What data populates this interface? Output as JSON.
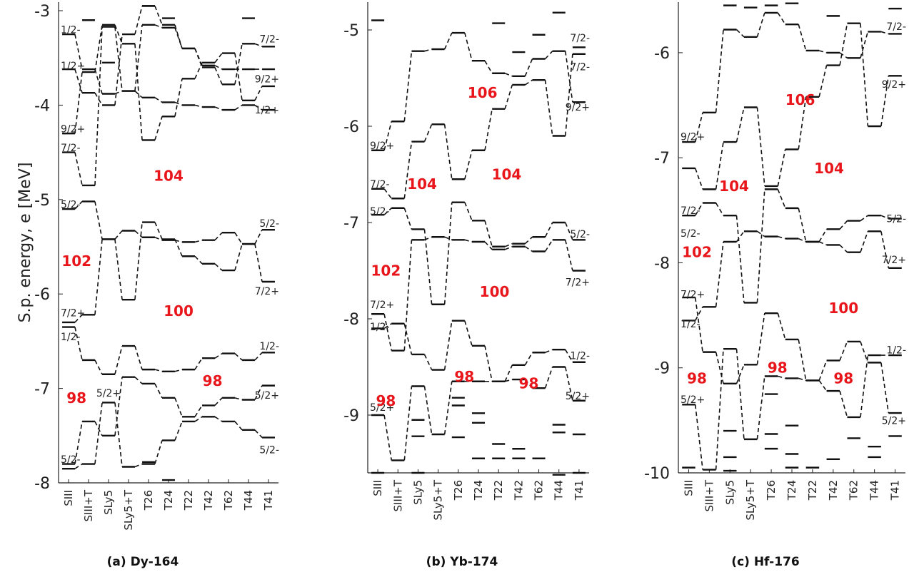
{
  "ylabel": "S.p. energy, e [MeV]",
  "categories": [
    "SIII",
    "SIII+T",
    "SLy5",
    "SLy5+T",
    "T26",
    "T24",
    "T22",
    "T42",
    "T62",
    "T44",
    "T41"
  ],
  "chart_data": [
    {
      "type": "level-scheme",
      "caption": "(a) Dy-164",
      "ylim": [
        -8,
        -3
      ],
      "yticks": [
        -3,
        -4,
        -5,
        -6,
        -7,
        -8
      ],
      "ytick_labels": [
        "-3",
        "-4",
        "-5",
        "-6",
        "-7",
        "-8"
      ],
      "series": [
        [
          -3.25,
          -3.62,
          -3.88,
          -3.85,
          -3.92,
          -3.97,
          -4.0,
          -4.02,
          -4.05,
          -4.0,
          -4.05
        ],
        [
          -3.62,
          -3.87,
          -4.0,
          -3.25,
          -2.95,
          -3.15,
          -3.4,
          -3.6,
          -3.78,
          -3.35,
          -3.38
        ],
        [
          -4.3,
          -3.65,
          -3.15,
          -3.35,
          -4.37,
          -4.12,
          -3.72,
          -3.55,
          -3.45,
          -3.95,
          -3.8
        ],
        [
          -4.5,
          -4.85,
          -3.17,
          -3.85,
          -3.15,
          -3.18,
          -3.4,
          -3.58,
          -3.62,
          -3.62,
          -3.62
        ],
        [
          -5.1,
          -5.02,
          -5.42,
          -6.06,
          -5.24,
          -5.42,
          -5.6,
          -5.68,
          -5.75,
          -5.47,
          -5.32
        ],
        [
          -6.3,
          -6.22,
          -5.42,
          -5.33,
          -5.4,
          -5.43,
          -5.45,
          -5.43,
          -5.35,
          -5.47,
          -5.87
        ],
        [
          -6.35,
          -6.7,
          -6.85,
          -6.55,
          -6.8,
          -6.82,
          -6.8,
          -6.68,
          -6.63,
          -6.7,
          -6.62
        ],
        [
          -7.8,
          -7.35,
          -7.5,
          -6.88,
          -6.95,
          -7.1,
          -7.3,
          -7.18,
          -7.1,
          -7.12,
          -6.97
        ],
        [
          -7.85,
          -7.8,
          -7.15,
          -7.83,
          -7.8,
          -7.55,
          -7.35,
          -7.3,
          -7.35,
          -7.44,
          -7.52
        ]
      ],
      "extra_levels": [
        [
          1,
          -3.1
        ],
        [
          5,
          -3.08
        ],
        [
          9,
          -3.08
        ],
        [
          4,
          -2.95
        ],
        [
          2,
          -3.55
        ],
        [
          4,
          -7.78
        ],
        [
          5,
          -7.97
        ]
      ],
      "left_labels": [
        {
          "text": "1/2-",
          "y": -3.2
        },
        {
          "text": "1/2+",
          "y": -3.58
        },
        {
          "text": "9/2+",
          "y": -4.25
        },
        {
          "text": "7/2-",
          "y": -4.45
        },
        {
          "text": "5/2-",
          "y": -5.05
        },
        {
          "text": "7/2+",
          "y": -6.2
        },
        {
          "text": "1/2-",
          "y": -6.45
        },
        {
          "text": "5/2-",
          "y": -7.75
        }
      ],
      "right_labels": [
        {
          "text": "7/2-",
          "y": -3.3
        },
        {
          "text": "9/2+",
          "y": -3.72
        },
        {
          "text": "1/2+",
          "y": -4.05
        },
        {
          "text": "5/2-",
          "y": -5.25
        },
        {
          "text": "7/2+",
          "y": -5.97
        },
        {
          "text": "1/2-",
          "y": -6.55
        },
        {
          "text": "5/2+",
          "y": -7.07
        },
        {
          "text": "5/2-",
          "y": -7.65
        }
      ],
      "inner_labels": [
        {
          "text": "5/2+",
          "cat": 2,
          "y": -7.05
        }
      ],
      "gap_labels": [
        {
          "text": "104",
          "cat": 5,
          "y": -4.75
        },
        {
          "text": "102",
          "cat": 0.4,
          "y": -5.65
        },
        {
          "text": "100",
          "cat": 5.5,
          "y": -6.18
        },
        {
          "text": "98",
          "cat": 0.4,
          "y": -7.1
        },
        {
          "text": "98",
          "cat": 7.2,
          "y": -6.92
        }
      ]
    },
    {
      "type": "level-scheme",
      "caption": "(b) Yb-174",
      "ylim": [
        -9.6,
        -4.8
      ],
      "yticks": [
        -5,
        -6,
        -7,
        -8,
        -9
      ],
      "ytick_labels": [
        "-5",
        "-6",
        "-7",
        "-8",
        "-9"
      ],
      "series": [
        [
          -6.25,
          -5.95,
          -5.22,
          -5.2,
          -5.03,
          -5.32,
          -5.45,
          -5.48,
          -5.3,
          -5.22,
          -5.75
        ],
        [
          -6.65,
          -6.75,
          -6.16,
          -5.98,
          -6.55,
          -6.25,
          -5.82,
          -5.57,
          -5.52,
          -6.1,
          -5.25
        ],
        [
          -6.92,
          -6.85,
          -7.07,
          -7.85,
          -6.79,
          -6.98,
          -7.25,
          -7.22,
          -7.15,
          -7.0,
          -7.18
        ],
        [
          -7.95,
          -8.33,
          -7.18,
          -7.15,
          -7.18,
          -7.2,
          -7.28,
          -7.25,
          -7.3,
          -7.18,
          -7.5
        ],
        [
          -8.1,
          -8.05,
          -8.37,
          -8.53,
          -8.02,
          -8.28,
          -8.65,
          -8.48,
          -8.35,
          -8.32,
          -8.45
        ],
        [
          -9.0,
          -9.47,
          -8.7,
          -9.2,
          -8.65,
          -8.65,
          -8.65,
          -8.63,
          -8.72,
          -8.5,
          -8.85
        ]
      ],
      "extra_levels": [
        [
          0,
          -4.9
        ],
        [
          9,
          -4.82
        ],
        [
          6,
          -4.93
        ],
        [
          7,
          -5.23
        ],
        [
          8,
          -5.05
        ],
        [
          10,
          -5.18
        ],
        [
          0,
          -9.6
        ],
        [
          2,
          -9.6
        ],
        [
          2,
          -9.05
        ],
        [
          2,
          -9.22
        ],
        [
          4,
          -8.82
        ],
        [
          4,
          -8.9
        ],
        [
          4,
          -9.23
        ],
        [
          5,
          -8.98
        ],
        [
          5,
          -9.08
        ],
        [
          5,
          -9.45
        ],
        [
          6,
          -9.3
        ],
        [
          6,
          -9.45
        ],
        [
          7,
          -9.35
        ],
        [
          7,
          -9.45
        ],
        [
          8,
          -9.45
        ],
        [
          9,
          -9.1
        ],
        [
          9,
          -9.18
        ],
        [
          9,
          -9.62
        ],
        [
          10,
          -9.2
        ],
        [
          10,
          -9.6
        ]
      ],
      "left_labels": [
        {
          "text": "9/2+",
          "y": -6.2
        },
        {
          "text": "7/2-",
          "y": -6.6
        },
        {
          "text": "5/2-",
          "y": -6.88
        },
        {
          "text": "7/2+",
          "y": -7.85
        },
        {
          "text": "1/2-",
          "y": -8.08
        },
        {
          "text": "5/2+",
          "y": -8.92
        }
      ],
      "right_labels": [
        {
          "text": "7/2-",
          "y": -5.08
        },
        {
          "text": "7/2-",
          "y": -5.38
        },
        {
          "text": "9/2+",
          "y": -5.8
        },
        {
          "text": "5/2-",
          "y": -7.12
        },
        {
          "text": "7/2+",
          "y": -7.62
        },
        {
          "text": "1/2-",
          "y": -8.38
        },
        {
          "text": "5/2+",
          "y": -8.8
        }
      ],
      "inner_labels": [],
      "gap_labels": [
        {
          "text": "106",
          "cat": 5.2,
          "y": -5.65
        },
        {
          "text": "104",
          "cat": 2.2,
          "y": -6.6
        },
        {
          "text": "104",
          "cat": 6.4,
          "y": -6.5
        },
        {
          "text": "102",
          "cat": 0.4,
          "y": -7.5
        },
        {
          "text": "100",
          "cat": 5.8,
          "y": -7.72
        },
        {
          "text": "98",
          "cat": 0.4,
          "y": -8.85
        },
        {
          "text": "98",
          "cat": 4.3,
          "y": -8.6
        },
        {
          "text": "98",
          "cat": 7.5,
          "y": -8.67
        }
      ]
    },
    {
      "type": "level-scheme",
      "caption": "(c) Hf-176",
      "ylim": [
        -10,
        -5.6
      ],
      "yticks": [
        -6,
        -7,
        -8,
        -9,
        -10
      ],
      "ytick_labels": [
        "-6",
        "-7",
        "-8",
        "-9",
        "-10"
      ],
      "series": [
        [
          -6.85,
          -6.57,
          -5.78,
          -5.85,
          -5.62,
          -5.73,
          -5.98,
          -6.0,
          -6.05,
          -5.8,
          -5.82
        ],
        [
          -7.1,
          -7.3,
          -6.85,
          -6.52,
          -7.27,
          -6.92,
          -6.42,
          -6.12,
          -5.72,
          -6.7,
          -6.22
        ],
        [
          -7.55,
          -7.43,
          -7.55,
          -8.38,
          -7.3,
          -7.48,
          -7.8,
          -7.68,
          -7.6,
          -7.55,
          -7.58
        ],
        [
          -8.55,
          -8.42,
          -7.8,
          -7.7,
          -7.75,
          -7.77,
          -7.8,
          -7.83,
          -7.9,
          -7.7,
          -8.05
        ],
        [
          -8.33,
          -8.85,
          -9.15,
          -8.97,
          -8.48,
          -8.73,
          -9.12,
          -9.22,
          -9.47,
          -8.88,
          -8.88
        ],
        [
          -9.35,
          -9.97,
          -8.82,
          -9.68,
          -9.08,
          -9.1,
          -9.12,
          -8.93,
          -8.75,
          -8.95,
          -9.43
        ]
      ],
      "extra_levels": [
        [
          2,
          -5.55
        ],
        [
          3,
          -5.57
        ],
        [
          4,
          -5.55
        ],
        [
          5,
          -5.53
        ],
        [
          7,
          -5.65
        ],
        [
          10,
          -5.58
        ],
        [
          0,
          -9.95
        ],
        [
          2,
          -9.6
        ],
        [
          2,
          -9.85
        ],
        [
          2,
          -9.98
        ],
        [
          4,
          -9.25
        ],
        [
          4,
          -9.63
        ],
        [
          4,
          -9.77
        ],
        [
          5,
          -9.55
        ],
        [
          5,
          -9.82
        ],
        [
          5,
          -9.95
        ],
        [
          6,
          -9.95
        ],
        [
          7,
          -9.87
        ],
        [
          8,
          -9.67
        ],
        [
          9,
          -9.75
        ],
        [
          9,
          -9.85
        ],
        [
          10,
          -9.65
        ]
      ],
      "left_labels": [
        {
          "text": "9/2+",
          "y": -6.8
        },
        {
          "text": "7/2-",
          "y": -7.5
        },
        {
          "text": "5/2-",
          "y": -7.72
        },
        {
          "text": "7/2+",
          "y": -8.3
        },
        {
          "text": "1/2-",
          "y": -8.58
        },
        {
          "text": "5/2+",
          "y": -9.3
        }
      ],
      "right_labels": [
        {
          "text": "7/2-",
          "y": -5.75
        },
        {
          "text": "9/2+",
          "y": -6.3
        },
        {
          "text": "5/2-",
          "y": -7.58
        },
        {
          "text": "7/2+",
          "y": -7.97
        },
        {
          "text": "1/2-",
          "y": -8.83
        },
        {
          "text": "5/2+",
          "y": -9.5
        }
      ],
      "inner_labels": [],
      "gap_labels": [
        {
          "text": "106",
          "cat": 5.4,
          "y": -6.45
        },
        {
          "text": "104",
          "cat": 2.2,
          "y": -7.27
        },
        {
          "text": "104",
          "cat": 6.8,
          "y": -7.1
        },
        {
          "text": "102",
          "cat": 0.4,
          "y": -7.9
        },
        {
          "text": "100",
          "cat": 7.5,
          "y": -8.43
        },
        {
          "text": "98",
          "cat": 0.4,
          "y": -9.1
        },
        {
          "text": "98",
          "cat": 4.3,
          "y": -9.0
        },
        {
          "text": "98",
          "cat": 7.5,
          "y": -9.1
        }
      ]
    }
  ]
}
